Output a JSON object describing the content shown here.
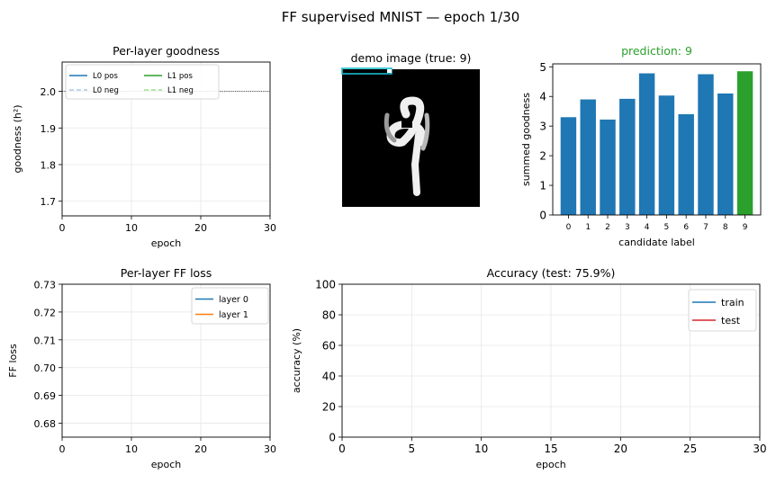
{
  "figure": {
    "suptitle": "FF supervised MNIST  —  epoch 1/30"
  },
  "colors": {
    "blue": "#1f77b4",
    "orange": "#ff7f0e",
    "green": "#2ca02c",
    "red": "#d62728",
    "blue_light": "#aec7e8",
    "green_light": "#98df8a",
    "cyan": "#17becf"
  },
  "chart_data": [
    {
      "id": "goodness",
      "type": "line",
      "title": "Per-layer goodness",
      "xlabel": "epoch",
      "ylabel": "goodness  (h²)",
      "xlim": [
        0,
        30
      ],
      "ylim": [
        1.66,
        2.08
      ],
      "xticks": [
        0,
        10,
        20,
        30
      ],
      "yticks": [
        1.7,
        1.8,
        1.9,
        2.0
      ],
      "grid": true,
      "legend": "top-left",
      "threshold": 2.0,
      "series": [
        {
          "name": "L0 pos",
          "values": [],
          "color": "#1f77b4",
          "style": "solid"
        },
        {
          "name": "L0 neg",
          "values": [],
          "color": "#aec7e8",
          "style": "dashed"
        },
        {
          "name": "L1 pos",
          "values": [],
          "color": "#2ca02c",
          "style": "solid"
        },
        {
          "name": "L1 neg",
          "values": [],
          "color": "#98df8a",
          "style": "dashed"
        }
      ]
    },
    {
      "id": "demo",
      "type": "image",
      "title": "demo image  (true: 9)"
    },
    {
      "id": "prediction",
      "type": "bar",
      "title": "prediction: 9",
      "xlabel": "candidate label",
      "ylabel": "summed goodness",
      "ylim": [
        0,
        5.1
      ],
      "yticks": [
        0,
        1,
        2,
        3,
        4,
        5
      ],
      "categories": [
        "0",
        "1",
        "2",
        "3",
        "4",
        "5",
        "6",
        "7",
        "8",
        "9"
      ],
      "values": [
        3.3,
        3.9,
        3.22,
        3.92,
        4.78,
        4.03,
        3.4,
        4.75,
        4.1,
        4.85
      ],
      "highlight_index": 9,
      "grid": false
    },
    {
      "id": "ffloss",
      "type": "line",
      "title": "Per-layer FF loss",
      "xlabel": "epoch",
      "ylabel": "FF loss",
      "xlim": [
        0,
        30
      ],
      "ylim": [
        0.675,
        0.73
      ],
      "xticks": [
        0,
        10,
        20,
        30
      ],
      "yticks": [
        0.68,
        0.69,
        0.7,
        0.71,
        0.72,
        0.73
      ],
      "grid": true,
      "legend": "top-right",
      "series": [
        {
          "name": "layer 0",
          "values": [],
          "color": "#1f77b4"
        },
        {
          "name": "layer 1",
          "values": [],
          "color": "#ff7f0e"
        }
      ]
    },
    {
      "id": "accuracy",
      "type": "line",
      "title": "Accuracy  (test: 75.9%)",
      "xlabel": "epoch",
      "ylabel": "accuracy (%)",
      "xlim": [
        0,
        30
      ],
      "ylim": [
        0,
        100
      ],
      "xticks": [
        0,
        5,
        10,
        15,
        20,
        25,
        30
      ],
      "yticks": [
        0,
        20,
        40,
        60,
        80,
        100
      ],
      "grid": true,
      "legend": "top-right",
      "series": [
        {
          "name": "train",
          "values": [],
          "color": "#1f77b4"
        },
        {
          "name": "test",
          "values": [],
          "color": "#d62728"
        }
      ]
    }
  ]
}
